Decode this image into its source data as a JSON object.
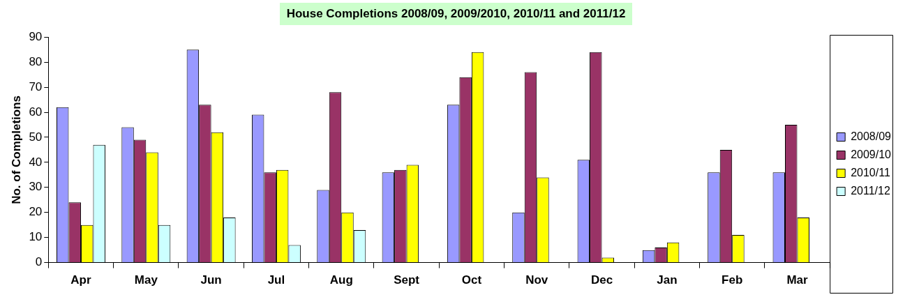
{
  "chart_data": {
    "type": "bar",
    "title": "House Completions 2008/09, 2009/2010, 2010/11 and 2011/12",
    "ylabel": "No. of Completions",
    "categories": [
      "Apr",
      "May",
      "Jun",
      "Jul",
      "Aug",
      "Sept",
      "Oct",
      "Nov",
      "Dec",
      "Jan",
      "Feb",
      "Mar"
    ],
    "series": [
      {
        "name": "2008/09",
        "color": "#9999ff",
        "values": [
          62,
          54,
          85,
          59,
          29,
          36,
          63,
          20,
          41,
          5,
          36,
          36
        ]
      },
      {
        "name": "2009/10",
        "color": "#993366",
        "values": [
          24,
          49,
          63,
          36,
          68,
          37,
          74,
          76,
          84,
          6,
          45,
          55
        ]
      },
      {
        "name": "2010/11",
        "color": "#ffff00",
        "values": [
          15,
          44,
          52,
          37,
          20,
          39,
          84,
          34,
          2,
          8,
          11,
          18
        ]
      },
      {
        "name": "2011/12",
        "color": "#ccffff",
        "values": [
          47,
          15,
          18,
          7,
          13,
          null,
          null,
          null,
          null,
          null,
          null,
          null
        ]
      }
    ],
    "ylim": [
      0,
      90
    ],
    "yticks": [
      0,
      10,
      20,
      30,
      40,
      50,
      60,
      70,
      80,
      90
    ],
    "grid": false,
    "legend": "right"
  }
}
